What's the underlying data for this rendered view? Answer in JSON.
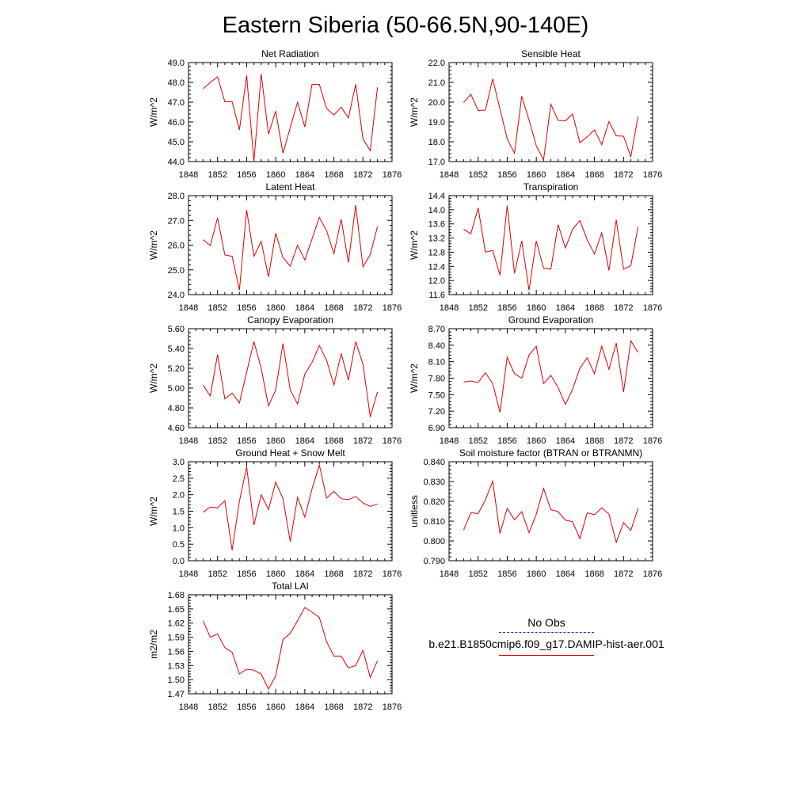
{
  "title": "Eastern Siberia (50-66.5N,90-140E)",
  "colors": {
    "model": "#e00000",
    "obs": "#2b2bb3"
  },
  "legend": {
    "obs_label": "No Obs",
    "model_label": "b.e21.B1850cmip6.f09_g17.DAMIP-hist-aer.001"
  },
  "chart_data": [
    {
      "type": "line",
      "title": "Net Radiation",
      "ylabel": "W/m^2",
      "xlim": [
        1848,
        1876
      ],
      "ylim": [
        44.0,
        49.0
      ],
      "xticks": [
        "1848",
        "1852",
        "1856",
        "1860",
        "1864",
        "1868",
        "1872",
        "1876"
      ],
      "yticks": [
        "44.0",
        "45.0",
        "46.0",
        "47.0",
        "48.0",
        "49.0"
      ],
      "x": [
        1850,
        1851,
        1852,
        1853,
        1854,
        1855,
        1856,
        1857,
        1858,
        1859,
        1860,
        1861,
        1862,
        1863,
        1864,
        1865,
        1866,
        1867,
        1868,
        1869,
        1870,
        1871,
        1872,
        1873,
        1874
      ],
      "series": [
        {
          "values": [
            47.68,
            48.0,
            48.28,
            47.02,
            47.02,
            45.6,
            48.35,
            44.0,
            48.43,
            45.38,
            46.55,
            44.42,
            45.72,
            47.0,
            45.75,
            47.9,
            47.9,
            46.68,
            46.35,
            46.75,
            46.2,
            47.9,
            45.15,
            44.55,
            47.75
          ]
        }
      ]
    },
    {
      "type": "line",
      "title": "Sensible Heat",
      "ylabel": "W/m^2",
      "xlim": [
        1848,
        1876
      ],
      "ylim": [
        17.0,
        22.0
      ],
      "xticks": [
        "1848",
        "1852",
        "1856",
        "1860",
        "1864",
        "1868",
        "1872",
        "1876"
      ],
      "yticks": [
        "17.0",
        "18.0",
        "19.0",
        "20.0",
        "21.0",
        "22.0"
      ],
      "x": [
        1850,
        1851,
        1852,
        1853,
        1854,
        1855,
        1856,
        1857,
        1858,
        1859,
        1860,
        1861,
        1862,
        1863,
        1864,
        1865,
        1866,
        1867,
        1868,
        1869,
        1870,
        1871,
        1872,
        1873,
        1874
      ],
      "series": [
        {
          "values": [
            19.98,
            20.4,
            19.58,
            19.6,
            21.18,
            19.65,
            18.15,
            17.42,
            20.3,
            19.1,
            17.8,
            17.08,
            19.9,
            19.08,
            19.06,
            19.4,
            17.95,
            18.25,
            18.6,
            17.85,
            19.02,
            18.3,
            18.28,
            17.25,
            19.28
          ]
        }
      ]
    },
    {
      "type": "line",
      "title": "Latent Heat",
      "ylabel": "W/m^2",
      "xlim": [
        1848,
        1876
      ],
      "ylim": [
        24.0,
        28.0
      ],
      "xticks": [
        "1848",
        "1852",
        "1856",
        "1860",
        "1864",
        "1868",
        "1872",
        "1876"
      ],
      "yticks": [
        "24.0",
        "25.0",
        "26.0",
        "27.0",
        "28.0"
      ],
      "x": [
        1850,
        1851,
        1852,
        1853,
        1854,
        1855,
        1856,
        1857,
        1858,
        1859,
        1860,
        1861,
        1862,
        1863,
        1864,
        1865,
        1866,
        1867,
        1868,
        1869,
        1870,
        1871,
        1872,
        1873,
        1874
      ],
      "series": [
        {
          "values": [
            26.22,
            25.98,
            27.1,
            25.6,
            25.55,
            24.18,
            27.42,
            25.55,
            26.15,
            24.72,
            26.48,
            25.5,
            25.15,
            26.0,
            25.4,
            26.25,
            27.12,
            26.58,
            25.65,
            27.05,
            25.3,
            27.62,
            25.12,
            25.62,
            26.75
          ]
        }
      ]
    },
    {
      "type": "line",
      "title": "Transpiration",
      "ylabel": "W/m^2",
      "xlim": [
        1848,
        1876
      ],
      "ylim": [
        11.6,
        14.4
      ],
      "xticks": [
        "1848",
        "1852",
        "1856",
        "1860",
        "1864",
        "1868",
        "1872",
        "1876"
      ],
      "yticks": [
        "11.6",
        "12.0",
        "12.4",
        "12.8",
        "13.2",
        "13.6",
        "14.0",
        "14.4"
      ],
      "x": [
        1850,
        1851,
        1852,
        1853,
        1854,
        1855,
        1856,
        1857,
        1858,
        1859,
        1860,
        1861,
        1862,
        1863,
        1864,
        1865,
        1866,
        1867,
        1868,
        1869,
        1870,
        1871,
        1872,
        1873,
        1874
      ],
      "series": [
        {
          "values": [
            13.45,
            13.32,
            14.05,
            12.8,
            12.85,
            12.15,
            14.12,
            12.2,
            13.12,
            11.72,
            13.12,
            12.35,
            12.32,
            13.58,
            12.92,
            13.45,
            13.7,
            13.15,
            12.75,
            13.35,
            12.28,
            13.72,
            12.32,
            12.42,
            13.52
          ]
        }
      ]
    },
    {
      "type": "line",
      "title": "Canopy Evaporation",
      "ylabel": "W/m^2",
      "xlim": [
        1848,
        1876
      ],
      "ylim": [
        4.6,
        5.6
      ],
      "xticks": [
        "1848",
        "1852",
        "1856",
        "1860",
        "1864",
        "1868",
        "1872",
        "1876"
      ],
      "yticks": [
        "4.60",
        "4.80",
        "5.00",
        "5.20",
        "5.40",
        "5.60"
      ],
      "x": [
        1850,
        1851,
        1852,
        1853,
        1854,
        1855,
        1856,
        1857,
        1858,
        1859,
        1860,
        1861,
        1862,
        1863,
        1864,
        1865,
        1866,
        1867,
        1868,
        1869,
        1870,
        1871,
        1872,
        1873,
        1874
      ],
      "series": [
        {
          "values": [
            5.03,
            4.92,
            5.34,
            4.89,
            4.95,
            4.85,
            5.16,
            5.47,
            5.2,
            4.82,
            4.98,
            5.45,
            4.98,
            4.84,
            5.14,
            5.26,
            5.43,
            5.28,
            5.03,
            5.35,
            5.08,
            5.47,
            5.24,
            4.71,
            4.96
          ]
        }
      ]
    },
    {
      "type": "line",
      "title": "Ground Evaporation",
      "ylabel": "W/m^2",
      "xlim": [
        1848,
        1876
      ],
      "ylim": [
        6.9,
        8.7
      ],
      "xticks": [
        "1848",
        "1852",
        "1856",
        "1860",
        "1864",
        "1868",
        "1872",
        "1876"
      ],
      "yticks": [
        "6.90",
        "7.20",
        "7.50",
        "7.80",
        "8.10",
        "8.40",
        "8.70"
      ],
      "x": [
        1850,
        1851,
        1852,
        1853,
        1854,
        1855,
        1856,
        1857,
        1858,
        1859,
        1860,
        1861,
        1862,
        1863,
        1864,
        1865,
        1866,
        1867,
        1868,
        1869,
        1870,
        1871,
        1872,
        1873,
        1874
      ],
      "series": [
        {
          "values": [
            7.73,
            7.75,
            7.72,
            7.9,
            7.7,
            7.18,
            8.18,
            7.88,
            7.8,
            8.22,
            8.38,
            7.7,
            7.85,
            7.63,
            7.32,
            7.6,
            7.98,
            8.17,
            7.88,
            8.38,
            7.96,
            8.44,
            7.55,
            8.48,
            8.27
          ]
        }
      ]
    },
    {
      "type": "line",
      "title": "Ground Heat + Snow Melt",
      "ylabel": "W/m^2",
      "xlim": [
        1848,
        1876
      ],
      "ylim": [
        0.0,
        3.0
      ],
      "xticks": [
        "1848",
        "1852",
        "1856",
        "1860",
        "1864",
        "1868",
        "1872",
        "1876"
      ],
      "yticks": [
        "0.0",
        "0.5",
        "1.0",
        "1.5",
        "2.0",
        "2.5",
        "3.0"
      ],
      "x": [
        1850,
        1851,
        1852,
        1853,
        1854,
        1855,
        1856,
        1857,
        1858,
        1859,
        1860,
        1861,
        1862,
        1863,
        1864,
        1865,
        1866,
        1867,
        1868,
        1869,
        1870,
        1871,
        1872,
        1873,
        1874
      ],
      "series": [
        {
          "values": [
            1.47,
            1.63,
            1.6,
            1.82,
            0.32,
            1.8,
            2.85,
            1.08,
            2.0,
            1.55,
            2.38,
            1.88,
            0.58,
            1.92,
            1.32,
            2.18,
            2.9,
            1.9,
            2.1,
            1.88,
            1.85,
            1.95,
            1.75,
            1.65,
            1.72
          ]
        }
      ]
    },
    {
      "type": "line",
      "title": "Soil moisture factor (BTRAN or BTRANMN)",
      "ylabel": "unitless",
      "xlim": [
        1848,
        1876
      ],
      "ylim": [
        0.79,
        0.84
      ],
      "xticks": [
        "1848",
        "1852",
        "1856",
        "1860",
        "1864",
        "1868",
        "1872",
        "1876"
      ],
      "yticks": [
        "0.790",
        "0.800",
        "0.810",
        "0.820",
        "0.830",
        "0.840"
      ],
      "x": [
        1850,
        1851,
        1852,
        1853,
        1854,
        1855,
        1856,
        1857,
        1858,
        1859,
        1860,
        1861,
        1862,
        1863,
        1864,
        1865,
        1866,
        1867,
        1868,
        1869,
        1870,
        1871,
        1872,
        1873,
        1874
      ],
      "series": [
        {
          "values": [
            0.8055,
            0.8143,
            0.8138,
            0.8207,
            0.8302,
            0.8038,
            0.8165,
            0.8107,
            0.8148,
            0.8042,
            0.8135,
            0.8265,
            0.8158,
            0.8148,
            0.8105,
            0.8097,
            0.8012,
            0.8142,
            0.8133,
            0.8168,
            0.8135,
            0.7993,
            0.8093,
            0.8053,
            0.8165
          ]
        }
      ]
    },
    {
      "type": "line",
      "title": "Total LAI",
      "ylabel": "m2/m2",
      "xlim": [
        1848,
        1876
      ],
      "ylim": [
        1.47,
        1.68
      ],
      "xticks": [
        "1848",
        "1852",
        "1856",
        "1860",
        "1864",
        "1868",
        "1872",
        "1876"
      ],
      "yticks": [
        "1.47",
        "1.50",
        "1.53",
        "1.56",
        "1.59",
        "1.62",
        "1.65",
        "1.68"
      ],
      "x": [
        1850,
        1851,
        1852,
        1853,
        1854,
        1855,
        1856,
        1857,
        1858,
        1859,
        1860,
        1861,
        1862,
        1863,
        1864,
        1865,
        1866,
        1867,
        1868,
        1869,
        1870,
        1871,
        1872,
        1873,
        1874
      ],
      "series": [
        {
          "values": [
            1.625,
            1.59,
            1.597,
            1.568,
            1.558,
            1.512,
            1.522,
            1.52,
            1.512,
            1.48,
            1.508,
            1.585,
            1.598,
            1.625,
            1.653,
            1.643,
            1.632,
            1.58,
            1.55,
            1.55,
            1.525,
            1.53,
            1.562,
            1.505,
            1.54
          ]
        }
      ]
    }
  ]
}
